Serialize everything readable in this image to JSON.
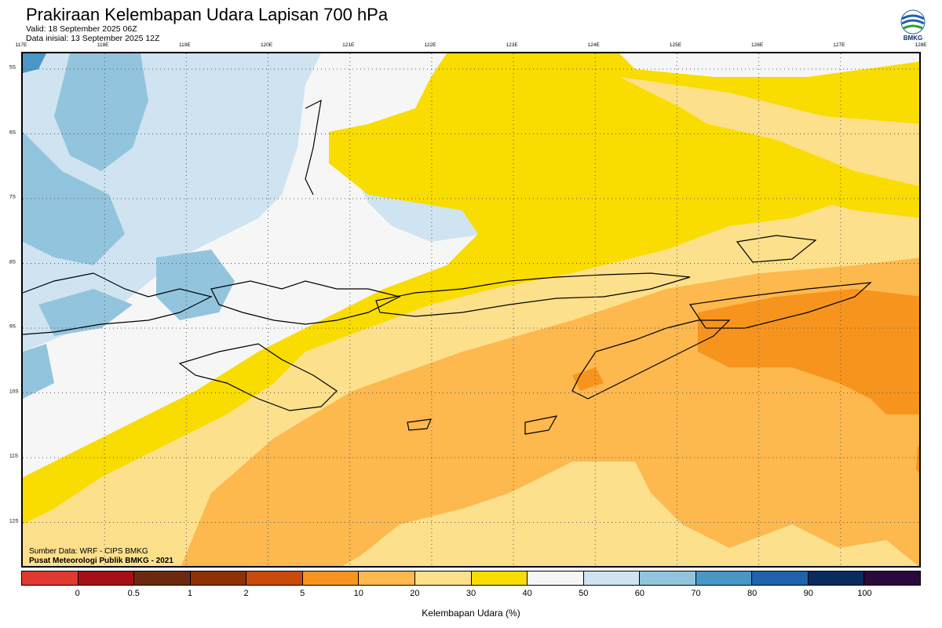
{
  "header": {
    "title": "Prakiraan Kelembapan Udara Lapisan 700 hPa",
    "valid": "Valid: 18 September 2025 06Z",
    "init": "Data inisial: 13 September 2025 12Z",
    "logo_text": "BMKG"
  },
  "map": {
    "lon_labels": [
      "117E",
      "118E",
      "119E",
      "120E",
      "121E",
      "122E",
      "123E",
      "124E",
      "125E",
      "126E",
      "127E",
      "128E"
    ],
    "lat_labels": [
      "5S",
      "6S",
      "7S",
      "8S",
      "9S",
      "10S",
      "11S",
      "12S"
    ],
    "source_line": "Sumber Data: WRF - CIPS BMKG",
    "credit_line": "Pusat Meteorologi Publik BMKG - 2021"
  },
  "legend": {
    "title": "Kelembapan Udara (%)",
    "ticks": [
      "0",
      "0.5",
      "1",
      "2",
      "5",
      "10",
      "20",
      "30",
      "40",
      "50",
      "60",
      "70",
      "80",
      "90",
      "100"
    ],
    "colors": [
      "#e03a30",
      "#a50f15",
      "#6b2a10",
      "#8e3106",
      "#c94a0a",
      "#f7941d",
      "#fdb84e",
      "#fde08c",
      "#f9dc00",
      "#f6f6f6",
      "#cfe4f0",
      "#93c4dd",
      "#4a97c7",
      "#1f63ad",
      "#0a2b5e",
      "#2a0a3c"
    ]
  },
  "colors": {
    "rh_30_40": "#f9dc00",
    "rh_50_60": "#cfe4f0",
    "rh_60_70": "#93c4dd",
    "rh_70_80": "#4a97c7",
    "rh_20_30": "#fde08c",
    "rh_10_20": "#fdb84e",
    "rh_5_10": "#f7941d",
    "rh_40_50": "#f6f6f6"
  }
}
